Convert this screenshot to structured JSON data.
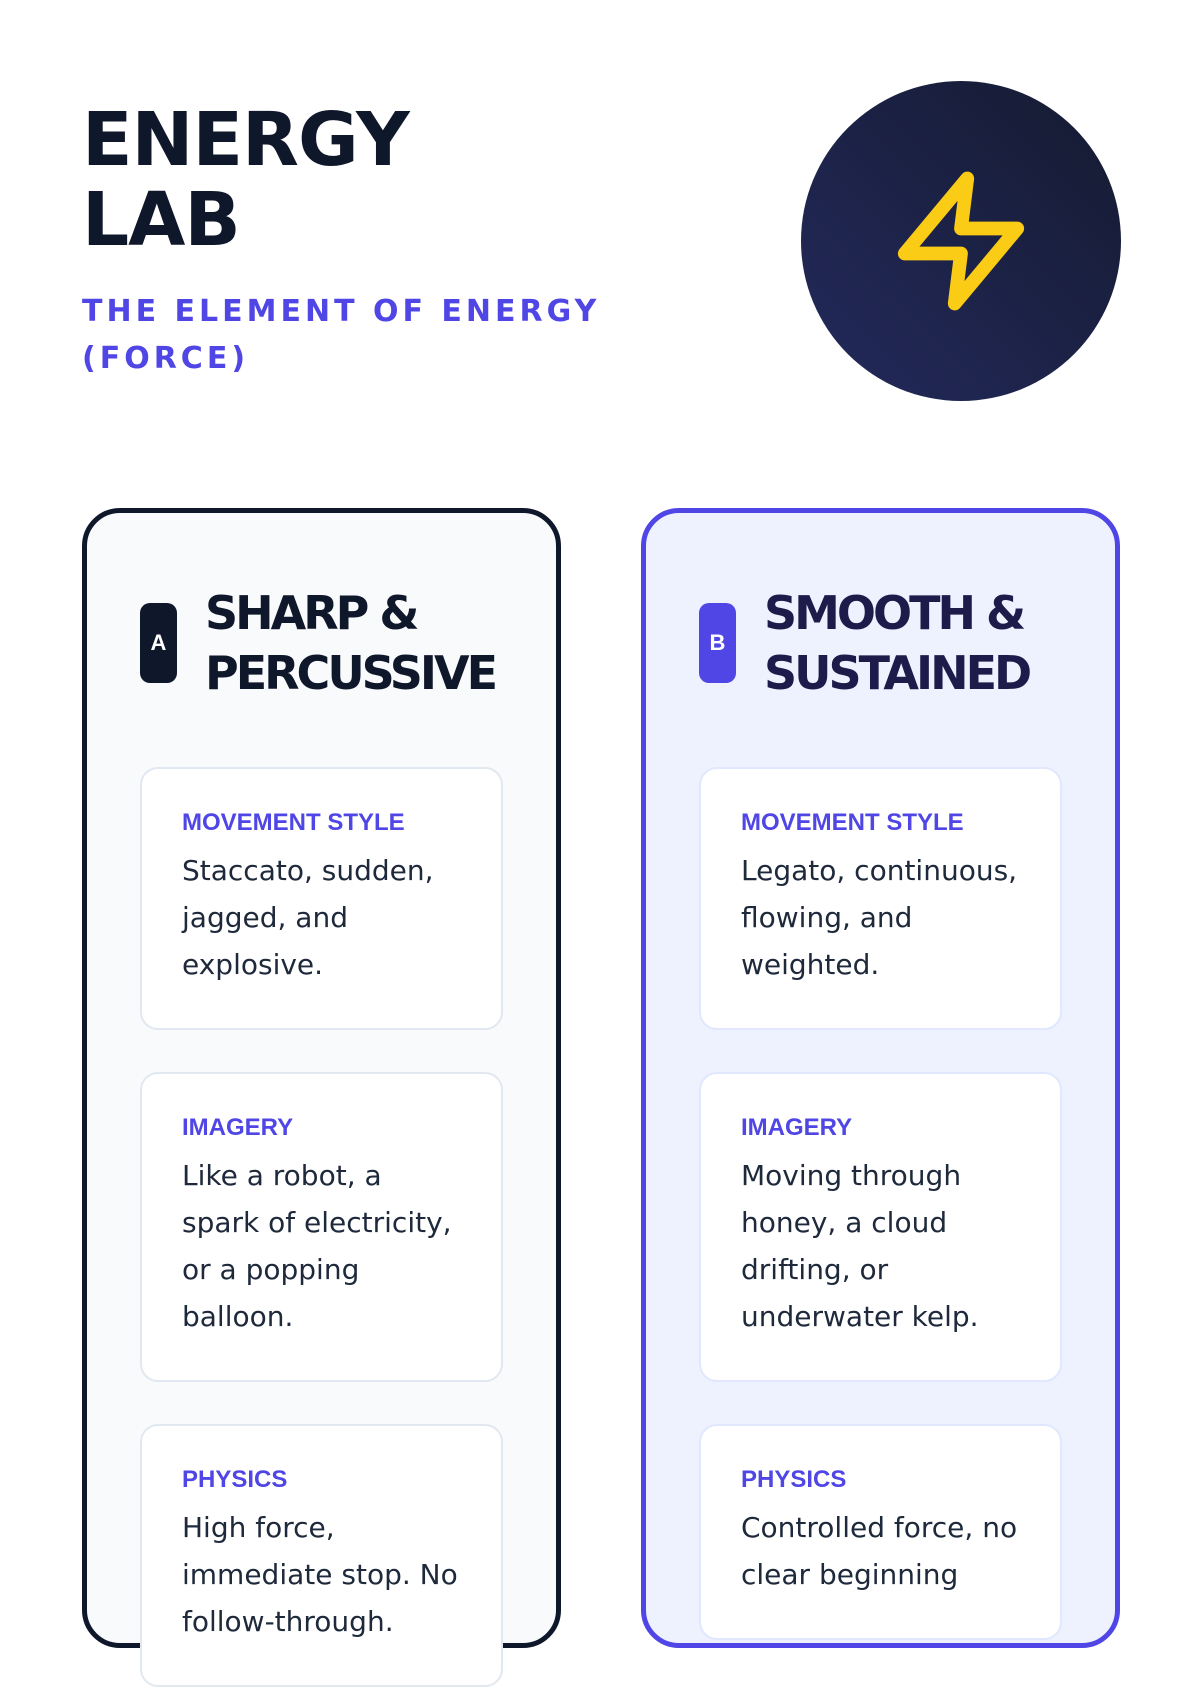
{
  "header": {
    "title_line1": "ENERGY",
    "title_line2": "LAB",
    "subtitle": "THE ELEMENT OF ENERGY (FORCE)",
    "icon": "lightning-bolt-icon"
  },
  "colors": {
    "accent": "#4f46e5",
    "dark": "#0f172a",
    "bolt": "#facc15"
  },
  "cards": [
    {
      "badge": "A",
      "title_line1": "SHARP &",
      "title_line2": "PERCUSSIVE",
      "sections": [
        {
          "label": "MOVEMENT STYLE",
          "text": "Staccato, sudden, jagged, and explosive."
        },
        {
          "label": "IMAGERY",
          "text": "Like a robot, a spark of electricity, or a popping balloon."
        },
        {
          "label": "PHYSICS",
          "text": "High force, immediate stop. No follow-through."
        }
      ]
    },
    {
      "badge": "B",
      "title_line1": "SMOOTH &",
      "title_line2": "SUSTAINED",
      "sections": [
        {
          "label": "MOVEMENT STYLE",
          "text": "Legato, continuous, flowing, and weighted."
        },
        {
          "label": "IMAGERY",
          "text": "Moving through honey, a cloud drifting, or underwater kelp."
        },
        {
          "label": "PHYSICS",
          "text": "Controlled force, no clear beginning"
        }
      ]
    }
  ]
}
